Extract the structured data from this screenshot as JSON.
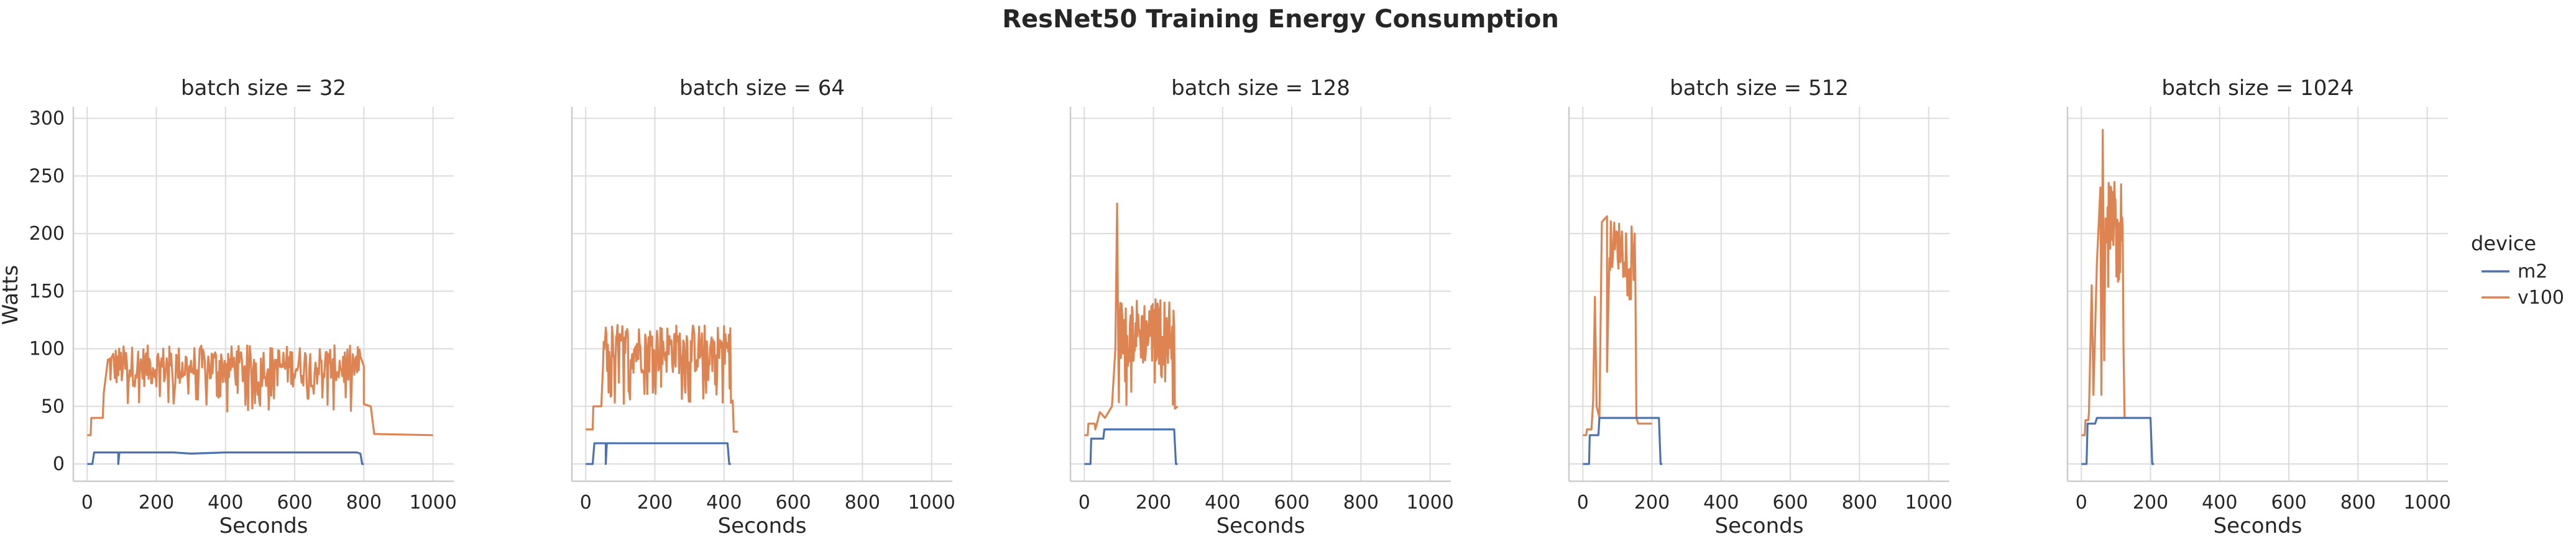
{
  "chart_data": {
    "type": "line",
    "title": "ResNet50 Training Energy Consumption",
    "xlabel": "Seconds",
    "ylabel": "Watts",
    "xlim": [
      -40,
      1060
    ],
    "ylim": [
      -15,
      310
    ],
    "xticks": [
      0,
      200,
      400,
      600,
      800,
      1000
    ],
    "yticks": [
      0,
      50,
      100,
      150,
      200,
      250,
      300
    ],
    "grid": true,
    "legend": {
      "title": "device",
      "placement": "right",
      "entries": [
        {
          "name": "m2",
          "color": "#4c72b0"
        },
        {
          "name": "v100",
          "color": "#dd8452"
        }
      ]
    },
    "facets": [
      {
        "title": "batch size = 32",
        "series": [
          {
            "name": "m2",
            "color": "#4c72b0",
            "points": [
              [
                0,
                0
              ],
              [
                15,
                0
              ],
              [
                20,
                10
              ],
              [
                90,
                10
              ],
              [
                90,
                0
              ],
              [
                93,
                10
              ],
              [
                250,
                10
              ],
              [
                300,
                9
              ],
              [
                400,
                10
              ],
              [
                600,
                10
              ],
              [
                780,
                10
              ],
              [
                790,
                9
              ],
              [
                795,
                0
              ],
              [
                800,
                0
              ]
            ]
          },
          {
            "name": "v100",
            "color": "#dd8452",
            "points": [
              [
                0,
                25
              ],
              [
                10,
                25
              ],
              [
                12,
                40
              ],
              [
                45,
                40
              ],
              [
                48,
                62
              ],
              [
                60,
                60
              ],
              [
                65,
                90
              ],
              [
                100,
                90
              ],
              [
                105,
                70
              ],
              [
                110,
                85
              ],
              [
                800,
                85
              ],
              [
                800,
                52
              ],
              [
                820,
                50
              ],
              [
                830,
                26
              ],
              [
                1000,
                25
              ]
            ],
            "noise": {
              "from": 60,
              "to": 790,
              "amplitude": 18,
              "step": 2.5,
              "base": 85
            }
          }
        ]
      },
      {
        "title": "batch size = 64",
        "series": [
          {
            "name": "m2",
            "color": "#4c72b0",
            "points": [
              [
                0,
                0
              ],
              [
                20,
                0
              ],
              [
                25,
                18
              ],
              [
                58,
                18
              ],
              [
                58,
                0
              ],
              [
                61,
                18
              ],
              [
                200,
                18
              ],
              [
                410,
                18
              ],
              [
                415,
                0
              ],
              [
                420,
                0
              ]
            ]
          },
          {
            "name": "v100",
            "color": "#dd8452",
            "points": [
              [
                0,
                30
              ],
              [
                20,
                30
              ],
              [
                22,
                50
              ],
              [
                45,
                50
              ],
              [
                50,
                100
              ],
              [
                420,
                100
              ],
              [
                425,
                55
              ],
              [
                428,
                28
              ],
              [
                440,
                28
              ]
            ],
            "noise": {
              "from": 50,
              "to": 420,
              "amplitude": 22,
              "step": 2.0,
              "base": 100
            }
          }
        ]
      },
      {
        "title": "batch size = 128",
        "series": [
          {
            "name": "m2",
            "color": "#4c72b0",
            "points": [
              [
                0,
                0
              ],
              [
                18,
                0
              ],
              [
                20,
                22
              ],
              [
                55,
                22
              ],
              [
                58,
                30
              ],
              [
                260,
                30
              ],
              [
                265,
                0
              ],
              [
                270,
                0
              ]
            ]
          },
          {
            "name": "v100",
            "color": "#dd8452",
            "points": [
              [
                0,
                25
              ],
              [
                10,
                25
              ],
              [
                12,
                35
              ],
              [
                30,
                35
              ],
              [
                32,
                30
              ],
              [
                45,
                45
              ],
              [
                60,
                40
              ],
              [
                80,
                50
              ],
              [
                90,
                100
              ],
              [
                95,
                226
              ],
              [
                98,
                110
              ],
              [
                260,
                120
              ],
              [
                262,
                48
              ],
              [
                270,
                50
              ]
            ],
            "noise": {
              "from": 100,
              "to": 258,
              "amplitude": 30,
              "step": 2.0,
              "base": 115
            }
          }
        ]
      },
      {
        "title": "batch size = 512",
        "series": [
          {
            "name": "m2",
            "color": "#4c72b0",
            "points": [
              [
                0,
                0
              ],
              [
                18,
                0
              ],
              [
                20,
                25
              ],
              [
                45,
                25
              ],
              [
                48,
                40
              ],
              [
                220,
                40
              ],
              [
                225,
                0
              ],
              [
                230,
                0
              ]
            ]
          },
          {
            "name": "v100",
            "color": "#dd8452",
            "points": [
              [
                0,
                25
              ],
              [
                10,
                25
              ],
              [
                12,
                30
              ],
              [
                25,
                30
              ],
              [
                30,
                55
              ],
              [
                35,
                145
              ],
              [
                40,
                50
              ],
              [
                48,
                40
              ],
              [
                55,
                210
              ],
              [
                70,
                215
              ],
              [
                70,
                80
              ],
              [
                75,
                200
              ],
              [
                150,
                200
              ],
              [
                152,
                160
              ],
              [
                155,
                40
              ],
              [
                160,
                35
              ],
              [
                200,
                35
              ]
            ],
            "noise": {
              "from": 75,
              "to": 148,
              "amplitude": 22,
              "step": 2.0,
              "base": 190
            }
          }
        ]
      },
      {
        "title": "batch size = 1024",
        "series": [
          {
            "name": "m2",
            "color": "#4c72b0",
            "points": [
              [
                0,
                0
              ],
              [
                15,
                0
              ],
              [
                18,
                35
              ],
              [
                40,
                35
              ],
              [
                45,
                40
              ],
              [
                200,
                40
              ],
              [
                205,
                0
              ],
              [
                210,
                0
              ]
            ]
          },
          {
            "name": "v100",
            "color": "#dd8452",
            "points": [
              [
                0,
                25
              ],
              [
                10,
                25
              ],
              [
                12,
                38
              ],
              [
                20,
                38
              ],
              [
                22,
                45
              ],
              [
                30,
                155
              ],
              [
                35,
                60
              ],
              [
                45,
                175
              ],
              [
                55,
                240
              ],
              [
                58,
                60
              ],
              [
                62,
                290
              ],
              [
                66,
                90
              ],
              [
                70,
                245
              ],
              [
                85,
                180
              ],
              [
                90,
                240
              ],
              [
                120,
                230
              ],
              [
                122,
                100
              ],
              [
                125,
                40
              ],
              [
                135,
                40
              ]
            ],
            "noise": {
              "from": 70,
              "to": 120,
              "amplitude": 30,
              "step": 1.5,
              "base": 215
            }
          }
        ]
      }
    ]
  }
}
